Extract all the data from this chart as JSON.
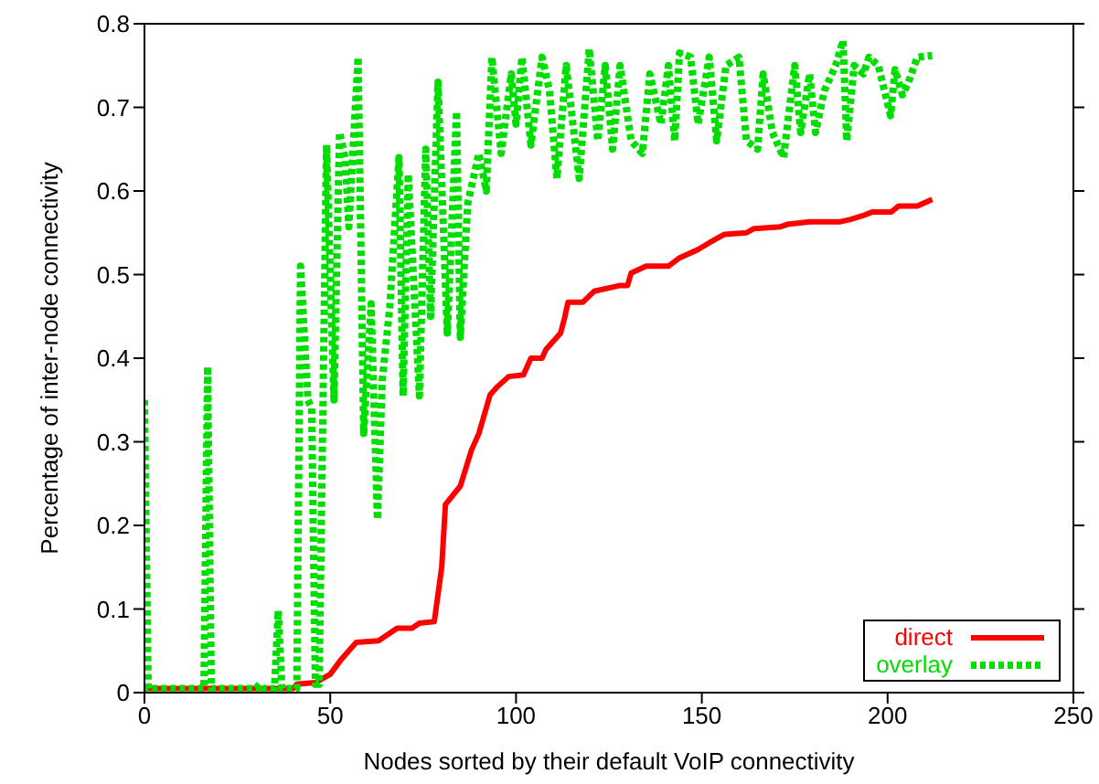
{
  "chart_data": {
    "type": "line",
    "xlabel": "Nodes sorted by their default VoIP connectivity",
    "ylabel": "Percentage of inter-node connectivity",
    "xlim": [
      0,
      250
    ],
    "xticks": [
      0,
      50,
      100,
      150,
      200,
      250
    ],
    "ylim": [
      0,
      0.8
    ],
    "yticks": [
      0,
      0.1,
      0.2,
      0.3,
      0.4,
      0.5,
      0.6,
      0.7,
      0.8
    ],
    "grid": false,
    "legend": "bottom right",
    "marker": "none",
    "series": [
      {
        "name": "direct",
        "color": "#ff0000",
        "line_style": "solid",
        "x": [
          0,
          40,
          41,
          46,
          50,
          53,
          57,
          63,
          68,
          72,
          74,
          78,
          80,
          81,
          85,
          88,
          90,
          93,
          95,
          98,
          102,
          104,
          107,
          108,
          112,
          113,
          114,
          118,
          121,
          128,
          130,
          131,
          135,
          141,
          144,
          149,
          152,
          156,
          162,
          164,
          171,
          173,
          179,
          187,
          190,
          193,
          196,
          201,
          203,
          208,
          212
        ],
        "values": [
          0.005,
          0.005,
          0.01,
          0.012,
          0.022,
          0.04,
          0.06,
          0.062,
          0.077,
          0.077,
          0.083,
          0.085,
          0.15,
          0.225,
          0.247,
          0.29,
          0.31,
          0.356,
          0.366,
          0.378,
          0.38,
          0.4,
          0.4,
          0.41,
          0.43,
          0.447,
          0.467,
          0.467,
          0.48,
          0.487,
          0.487,
          0.502,
          0.51,
          0.51,
          0.52,
          0.53,
          0.538,
          0.548,
          0.55,
          0.555,
          0.557,
          0.56,
          0.563,
          0.563,
          0.566,
          0.57,
          0.575,
          0.575,
          0.582,
          0.582,
          0.59
        ]
      },
      {
        "name": "overlay",
        "color": "#00dd00",
        "line_style": "dotted",
        "x": [
          0,
          1,
          16,
          17,
          18,
          30,
          31,
          32,
          35,
          36,
          37,
          41,
          42,
          44,
          45,
          46,
          47,
          49,
          51,
          52.5,
          54,
          55,
          57.5,
          59,
          61,
          62.7,
          64,
          66,
          68.5,
          69.6,
          71,
          74,
          75.7,
          77,
          79,
          81.5,
          84,
          85,
          87,
          90,
          92,
          93.5,
          96,
          98.7,
          100,
          101.6,
          104,
          107,
          109,
          111,
          113.5,
          117,
          119.7,
          122,
          124,
          126,
          128,
          131,
          134,
          136,
          139,
          141,
          142.7,
          144,
          147,
          149,
          152,
          154,
          156.5,
          160,
          162,
          165,
          166.5,
          169,
          172,
          175,
          176.6,
          179,
          180.6,
          183,
          186,
          188,
          189,
          191,
          193.5,
          195,
          197.5,
          200.8,
          202,
          204,
          205.6,
          208,
          212
        ],
        "values": [
          0.35,
          0.005,
          0.005,
          0.39,
          0.005,
          0.005,
          0.01,
          0.005,
          0.005,
          0.098,
          0.005,
          0.005,
          0.51,
          0.35,
          0.34,
          0.01,
          0.01,
          0.655,
          0.35,
          0.67,
          0.64,
          0.557,
          0.76,
          0.31,
          0.465,
          0.207,
          0.374,
          0.46,
          0.64,
          0.355,
          0.62,
          0.355,
          0.65,
          0.45,
          0.73,
          0.43,
          0.695,
          0.425,
          0.585,
          0.645,
          0.6,
          0.76,
          0.645,
          0.74,
          0.68,
          0.76,
          0.655,
          0.76,
          0.72,
          0.615,
          0.75,
          0.615,
          0.77,
          0.66,
          0.75,
          0.65,
          0.75,
          0.66,
          0.645,
          0.74,
          0.68,
          0.75,
          0.66,
          0.765,
          0.76,
          0.68,
          0.76,
          0.66,
          0.75,
          0.76,
          0.66,
          0.65,
          0.74,
          0.67,
          0.64,
          0.75,
          0.67,
          0.74,
          0.67,
          0.72,
          0.75,
          0.78,
          0.66,
          0.75,
          0.74,
          0.76,
          0.75,
          0.69,
          0.745,
          0.715,
          0.73,
          0.76,
          0.762
        ]
      }
    ]
  }
}
